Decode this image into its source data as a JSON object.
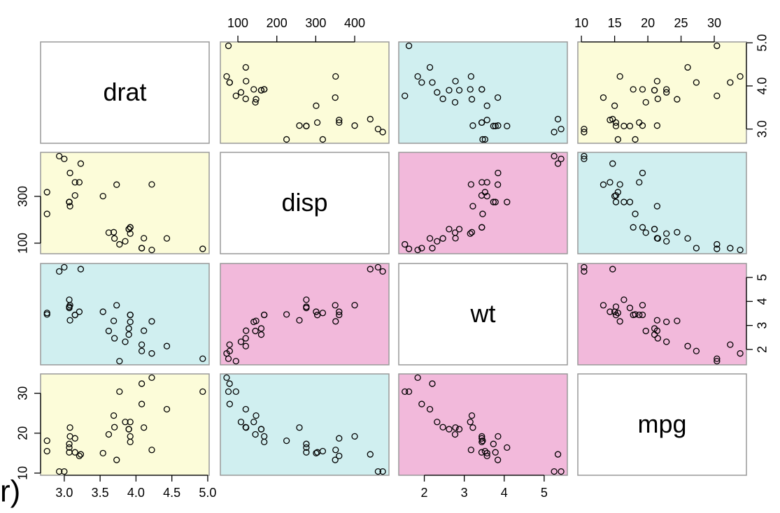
{
  "chart_data": {
    "type": "scatter_matrix",
    "variables": [
      {
        "name": "drat",
        "values": [
          3.9,
          3.9,
          3.85,
          3.08,
          3.15,
          2.76,
          3.21,
          3.69,
          3.92,
          3.92,
          3.92,
          3.07,
          3.07,
          3.07,
          2.93,
          3,
          3.23,
          4.08,
          4.93,
          4.22,
          3.7,
          2.76,
          3.15,
          3.73,
          3.08,
          4.08,
          4.43,
          3.77,
          4.22,
          3.62,
          3.54,
          4.11
        ],
        "lim": [
          2.67,
          5.02
        ],
        "xticks": [
          {
            "value": 3,
            "label": "3.0"
          },
          {
            "value": 3.5,
            "label": "3.5"
          },
          {
            "value": 4,
            "label": "4.0"
          },
          {
            "value": 4.5,
            "label": "4.5"
          },
          {
            "value": 5,
            "label": "5.0"
          }
        ],
        "yticks": [
          {
            "value": 3,
            "label": "3.0"
          },
          {
            "value": 4,
            "label": "4.0"
          },
          {
            "value": 5,
            "label": "5.0"
          }
        ]
      },
      {
        "name": "disp",
        "values": [
          160,
          160,
          108,
          258,
          360,
          225,
          360,
          146.7,
          140.8,
          167.6,
          167.6,
          275.8,
          275.8,
          275.8,
          472,
          460,
          440,
          78.7,
          75.7,
          71.1,
          120.1,
          318,
          304,
          350,
          400,
          79,
          120.3,
          95.1,
          351,
          145,
          301,
          121
        ],
        "lim": [
          55,
          488
        ],
        "xticks": [
          100,
          200,
          300,
          400
        ],
        "yticks": [
          100,
          300
        ]
      },
      {
        "name": "wt",
        "values": [
          2.62,
          2.875,
          2.32,
          3.215,
          3.44,
          3.46,
          3.57,
          3.19,
          3.15,
          3.44,
          3.44,
          4.07,
          3.73,
          3.78,
          5.25,
          5.424,
          5.345,
          2.2,
          1.615,
          1.835,
          2.465,
          3.52,
          3.435,
          3.84,
          3.845,
          1.935,
          2.14,
          1.513,
          3.17,
          2.77,
          3.57,
          2.78
        ],
        "lim": [
          1.36,
          5.58
        ],
        "xticks": [
          2,
          3,
          4,
          5
        ],
        "yticks": [
          2,
          3,
          4,
          5
        ]
      },
      {
        "name": "mpg",
        "values": [
          21,
          21,
          22.8,
          21.4,
          18.7,
          18.1,
          14.3,
          24.4,
          22.8,
          19.2,
          17.8,
          16.4,
          17.3,
          15.2,
          10.4,
          10.4,
          14.7,
          32.4,
          30.4,
          33.9,
          21.5,
          15.5,
          15.2,
          13.3,
          19.2,
          27.3,
          26,
          30.4,
          15.8,
          19.7,
          15,
          21.4
        ],
        "lim": [
          9.46,
          34.84
        ],
        "xticks": [
          10,
          15,
          20,
          25,
          30
        ],
        "yticks": [
          10,
          20,
          30
        ]
      }
    ],
    "panel_colors": [
      [
        "#ffffff",
        "#fcfcd9",
        "#d0eff0",
        "#fcfcd9"
      ],
      [
        "#fcfcd9",
        "#ffffff",
        "#f2b9db",
        "#d0eff0"
      ],
      [
        "#d0eff0",
        "#f2b9db",
        "#ffffff",
        "#f2b9db"
      ],
      [
        "#fcfcd9",
        "#d0eff0",
        "#f2b9db",
        "#ffffff"
      ]
    ],
    "point_color": "#000000",
    "fragment": "r)"
  }
}
